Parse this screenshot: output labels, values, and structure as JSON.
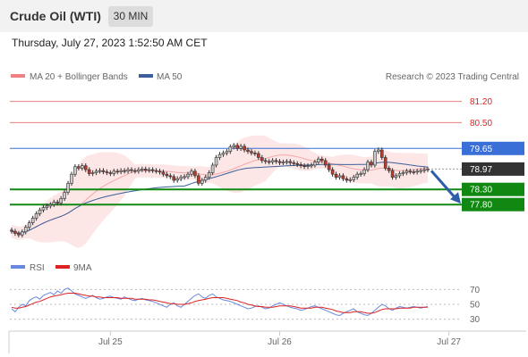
{
  "header": {
    "title": "Crude Oil (WTI)",
    "interval": "30 MIN",
    "datetime": "Thursday, July 27, 2023 1:52:50 AM CET"
  },
  "colors": {
    "resistance": "#f08080",
    "pivot": "#3a6fd8",
    "support": "#118811",
    "candle_up": "#cccccc",
    "candle_down": "#c0392b",
    "bollinger_fill": "#fde2e2",
    "ma20": "#f6a6a6",
    "ma50": "#3a5f9a",
    "rsi": "#6688dd",
    "rsi_ma": "#dd2222",
    "arrow": "#2c5fa8"
  },
  "chart_data": [
    {
      "type": "candlestick",
      "legend": [
        {
          "label": "MA 20 + Bollinger Bands",
          "color": "#f08080",
          "icon": "legend-line"
        },
        {
          "label": "MA 50",
          "color": "#3a5f9a",
          "icon": "legend-line"
        }
      ],
      "watermark": "Research © 2023 Trading Central",
      "levels": [
        {
          "value": 81.2,
          "label": "81.20",
          "role": "resistance",
          "style": "line-label"
        },
        {
          "value": 80.5,
          "label": "80.50",
          "role": "resistance",
          "style": "line-label"
        },
        {
          "value": 79.65,
          "label": "79.65",
          "role": "pivot",
          "style": "tag"
        },
        {
          "value": 78.97,
          "label": "78.97",
          "role": "last",
          "style": "tag"
        },
        {
          "value": 78.3,
          "label": "78.30",
          "role": "support",
          "style": "tag"
        },
        {
          "value": 77.8,
          "label": "77.80",
          "role": "support",
          "style": "tag"
        }
      ],
      "x_ticks": [
        {
          "label": "Jul 25",
          "index": 28
        },
        {
          "label": "Jul 26",
          "index": 76
        },
        {
          "label": "Jul 27",
          "index": 124
        }
      ],
      "ylim": [
        76.6,
        81.6
      ],
      "arrow": {
        "from_value": 78.97,
        "to_value": 77.8,
        "direction": "down"
      },
      "candles": [
        76.92,
        76.85,
        76.8,
        76.9,
        77.05,
        77.2,
        77.35,
        77.5,
        77.62,
        77.7,
        77.75,
        77.8,
        77.88,
        77.85,
        78.0,
        78.2,
        78.5,
        78.8,
        79.05,
        79.0,
        79.08,
        78.95,
        78.82,
        78.85,
        78.9,
        78.92,
        78.88,
        78.85,
        78.82,
        78.9,
        78.88,
        78.92,
        78.9,
        78.95,
        78.92,
        78.9,
        78.95,
        78.97,
        78.93,
        78.95,
        78.92,
        78.9,
        78.87,
        78.8,
        78.75,
        78.72,
        78.6,
        78.65,
        78.7,
        78.72,
        78.8,
        78.9,
        78.75,
        78.5,
        78.6,
        78.7,
        78.85,
        79.1,
        79.35,
        79.45,
        79.5,
        79.55,
        79.7,
        79.75,
        79.65,
        79.72,
        79.6,
        79.55,
        79.5,
        79.48,
        79.35,
        79.25,
        79.22,
        79.2,
        79.25,
        79.22,
        79.18,
        79.2,
        79.22,
        79.18,
        79.15,
        79.12,
        79.08,
        79.05,
        79.08,
        79.1,
        79.2,
        79.3,
        79.25,
        79.1,
        78.95,
        78.8,
        78.7,
        78.75,
        78.65,
        78.6,
        78.62,
        78.7,
        78.8,
        78.82,
        78.95,
        79.2,
        79.1,
        79.55,
        79.6,
        79.35,
        79.0,
        78.92,
        78.7,
        78.75,
        78.82,
        78.85,
        78.9,
        78.88,
        78.87,
        78.9,
        78.92,
        78.95,
        78.97
      ]
    },
    {
      "type": "line",
      "legend": [
        {
          "label": "RSI",
          "color": "#6688dd",
          "icon": "legend-line"
        },
        {
          "label": "9MA",
          "color": "#dd2222",
          "icon": "legend-line"
        }
      ],
      "y_ticks": [
        {
          "label": "70",
          "value": 70
        },
        {
          "label": "50",
          "value": 50
        },
        {
          "label": "30",
          "value": 30
        }
      ],
      "ylim": [
        20,
        80
      ],
      "series": [
        {
          "name": "RSI",
          "values": [
            44,
            40,
            46,
            50,
            48,
            55,
            58,
            60,
            57,
            62,
            64,
            66,
            63,
            68,
            65,
            70,
            72,
            68,
            64,
            62,
            60,
            58,
            60,
            62,
            59,
            57,
            58,
            60,
            61,
            59,
            58,
            57,
            60,
            58,
            56,
            55,
            57,
            58,
            56,
            55,
            54,
            52,
            50,
            48,
            46,
            50,
            52,
            48,
            46,
            50,
            54,
            58,
            62,
            64,
            60,
            58,
            62,
            64,
            60,
            58,
            56,
            55,
            54,
            52,
            50,
            48,
            46,
            44,
            45,
            47,
            48,
            46,
            44,
            45,
            48,
            50,
            52,
            50,
            48,
            46,
            45,
            44,
            42,
            43,
            45,
            47,
            48,
            46,
            44,
            42,
            40,
            38,
            36,
            35,
            38,
            40,
            42,
            44,
            40,
            38,
            36,
            35,
            38,
            42,
            46,
            50,
            48,
            44,
            42,
            45,
            47,
            46,
            45,
            46,
            47,
            46,
            45,
            46,
            47
          ]
        },
        {
          "name": "9MA",
          "values": [
            46,
            45,
            45,
            46,
            47,
            49,
            51,
            53,
            54,
            56,
            58,
            60,
            61,
            62,
            63,
            64,
            65,
            65,
            65,
            64,
            63,
            62,
            61,
            61,
            60,
            60,
            59,
            59,
            59,
            59,
            59,
            58,
            58,
            58,
            58,
            57,
            57,
            57,
            57,
            56,
            56,
            55,
            54,
            53,
            52,
            51,
            51,
            50,
            50,
            50,
            51,
            52,
            54,
            55,
            56,
            57,
            58,
            59,
            59,
            59,
            59,
            58,
            57,
            56,
            55,
            53,
            52,
            50,
            49,
            48,
            47,
            47,
            46,
            46,
            46,
            47,
            48,
            48,
            48,
            48,
            47,
            46,
            45,
            45,
            45,
            45,
            46,
            46,
            46,
            45,
            44,
            43,
            41,
            40,
            39,
            39,
            39,
            40,
            40,
            40,
            39,
            38,
            38,
            39,
            41,
            43,
            44,
            44,
            44,
            44,
            45,
            45,
            45,
            45,
            46,
            46,
            46,
            46,
            46
          ]
        }
      ]
    }
  ]
}
